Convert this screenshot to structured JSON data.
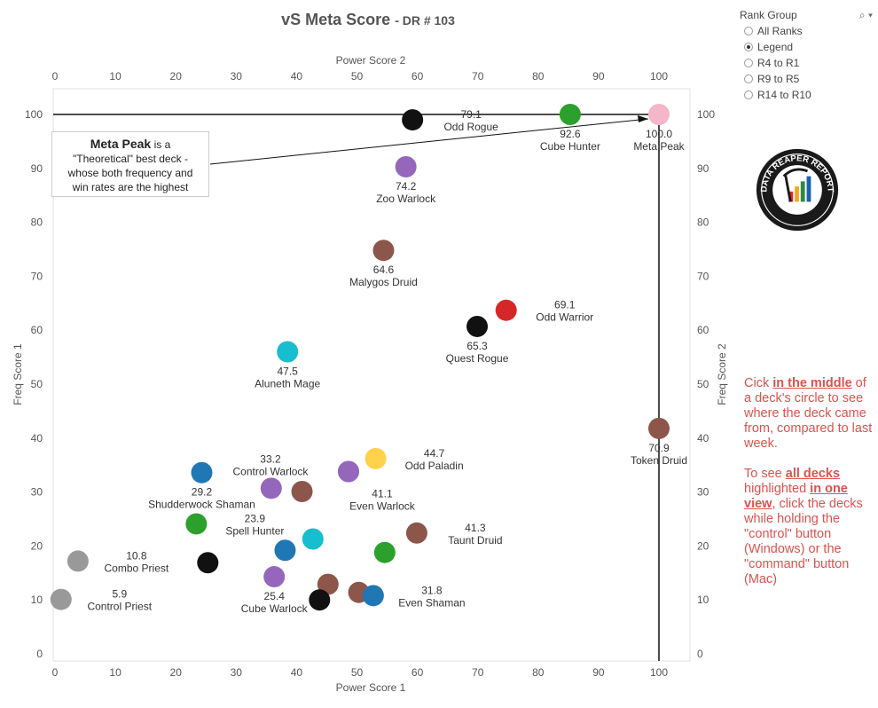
{
  "title": {
    "main": "vS Meta Score",
    "sub": "- DR # 103"
  },
  "rank_group": {
    "label": "Rank Group",
    "options": [
      {
        "label": "All Ranks",
        "selected": false
      },
      {
        "label": "Legend",
        "selected": true
      },
      {
        "label": "R4 to R1",
        "selected": false
      },
      {
        "label": "R9 to R5",
        "selected": false
      },
      {
        "label": "R14 to R10",
        "selected": false
      }
    ]
  },
  "callout": {
    "bold": "Meta Peak",
    "line1_rest": "is a",
    "line2": "\"Theoretical\" best deck -",
    "line3": "whose both frequency and",
    "line4": "win rates are the highest"
  },
  "help": {
    "p1_a": "Cick ",
    "p1_b": "in the middle",
    "p1_c": " of a deck's circle to see where the deck came from, compared to last week.",
    "p2_a": "To see ",
    "p2_b": "all decks",
    "p2_c": " highlighted ",
    "p2_d": "in one view",
    "p2_e": ", click the decks while holding the \"control\" button (Windows) or the \"command\" button (Mac)"
  },
  "logo": {
    "icon": "data-reaper-logo",
    "text": "DATA REAPER REPORT"
  },
  "chart_data": {
    "type": "scatter",
    "xlabel_bottom": "Power Score 1",
    "xlabel_top": "Power Score 2",
    "ylabel_left": "Freq Score 1",
    "ylabel_right": "Freq Score 2",
    "xlim": [
      0,
      105
    ],
    "ylim": [
      -2,
      106
    ],
    "xticks": [
      0,
      10,
      20,
      30,
      40,
      50,
      60,
      70,
      80,
      90,
      100
    ],
    "yticks": [
      0,
      10,
      20,
      30,
      40,
      50,
      60,
      70,
      80,
      90,
      100
    ],
    "colors": {
      "priest": "#999999",
      "rogue": "#111111",
      "hunter": "#2ca02c",
      "druid": "#8c564b",
      "warlock": "#9467bd",
      "shaman": "#1f77b4",
      "mage": "#17becf",
      "paladin": "#ffd24c",
      "warrior": "#d62728",
      "peak": "#f4b6c9"
    },
    "points": [
      {
        "name": "Meta Peak",
        "score": "100.0",
        "x": 100,
        "y": 100,
        "cls": "peak",
        "label_pos": "below"
      },
      {
        "name": "Cube Hunter",
        "score": "92.6",
        "x": 85.3,
        "y": 100,
        "cls": "hunter",
        "label_pos": "below"
      },
      {
        "name": "Odd Rogue",
        "score": "79.1",
        "x": 59.2,
        "y": 99,
        "cls": "rogue",
        "label_pos": "right"
      },
      {
        "name": "Zoo Warlock",
        "score": "74.2",
        "x": 58.1,
        "y": 90.3,
        "cls": "warlock",
        "label_pos": "below"
      },
      {
        "name": "Malygos Druid",
        "score": "64.6",
        "x": 54.4,
        "y": 74.8,
        "cls": "druid",
        "label_pos": "below"
      },
      {
        "name": "Odd Warrior",
        "score": "69.1",
        "x": 74.7,
        "y": 63.7,
        "cls": "warrior",
        "label_pos": "right"
      },
      {
        "name": "Quest Rogue",
        "score": "65.3",
        "x": 69.9,
        "y": 60.7,
        "cls": "rogue",
        "label_pos": "below"
      },
      {
        "name": "Aluneth Mage",
        "score": "47.5",
        "x": 38.5,
        "y": 56,
        "cls": "mage",
        "label_pos": "below"
      },
      {
        "name": "Token Druid",
        "score": "70.9",
        "x": 100,
        "y": 41.8,
        "cls": "druid",
        "label_pos": "below"
      },
      {
        "name": "Odd Paladin",
        "score": "44.7",
        "x": 53.1,
        "y": 36.2,
        "cls": "paladin",
        "label_pos": "right"
      },
      {
        "name": "Control Warlock",
        "score": "33.2",
        "x": 48.6,
        "y": 33.8,
        "cls": "warlock",
        "label_pos": "left"
      },
      {
        "name": "Shudderwock Shaman",
        "score": "29.2",
        "x": 24.3,
        "y": 33.6,
        "cls": "shaman",
        "label_pos": "below"
      },
      {
        "name": "",
        "score": "",
        "x": 35.8,
        "y": 30.7,
        "cls": "warlock",
        "label_pos": "none"
      },
      {
        "name": "",
        "score": "",
        "x": 40.9,
        "y": 30.1,
        "cls": "druid",
        "label_pos": "none"
      },
      {
        "name": "Even Warlock",
        "score": "41.1",
        "x": 48.6,
        "y": 33.8,
        "cls": "warlock",
        "label_pos": "belowfar"
      },
      {
        "name": "Spell Hunter",
        "score": "23.9",
        "x": 23.4,
        "y": 24.1,
        "cls": "hunter",
        "label_pos": "right"
      },
      {
        "name": "Taunt Druid",
        "score": "41.3",
        "x": 59.9,
        "y": 22.4,
        "cls": "druid",
        "label_pos": "right"
      },
      {
        "name": "",
        "score": "",
        "x": 42.7,
        "y": 21.3,
        "cls": "mage",
        "label_pos": "none"
      },
      {
        "name": "",
        "score": "",
        "x": 38.1,
        "y": 19.2,
        "cls": "shaman",
        "label_pos": "none"
      },
      {
        "name": "",
        "score": "",
        "x": 54.6,
        "y": 18.8,
        "cls": "hunter",
        "label_pos": "none"
      },
      {
        "name": "Combo Priest",
        "score": "10.8",
        "x": 3.8,
        "y": 17.2,
        "cls": "priest",
        "label_pos": "right"
      },
      {
        "name": "",
        "score": "",
        "x": 25.3,
        "y": 16.9,
        "cls": "rogue",
        "label_pos": "none"
      },
      {
        "name": "Cube Warlock",
        "score": "25.4",
        "x": 36.3,
        "y": 14.3,
        "cls": "warlock",
        "label_pos": "below"
      },
      {
        "name": "",
        "score": "",
        "x": 45.2,
        "y": 12.9,
        "cls": "druid",
        "label_pos": "none"
      },
      {
        "name": "",
        "score": "",
        "x": 50.3,
        "y": 11.4,
        "cls": "druid",
        "label_pos": "none"
      },
      {
        "name": "Even Shaman",
        "score": "31.8",
        "x": 52.7,
        "y": 10.8,
        "cls": "shaman",
        "label_pos": "right"
      },
      {
        "name": "",
        "score": "",
        "x": 43.8,
        "y": 10,
        "cls": "rogue",
        "label_pos": "none"
      },
      {
        "name": "Control Priest",
        "score": "5.9",
        "x": 1,
        "y": 10.1,
        "cls": "priest",
        "label_pos": "right"
      }
    ],
    "reference_lines": [
      {
        "type": "horizontal",
        "y": 100
      },
      {
        "type": "vertical",
        "x": 100
      }
    ]
  }
}
